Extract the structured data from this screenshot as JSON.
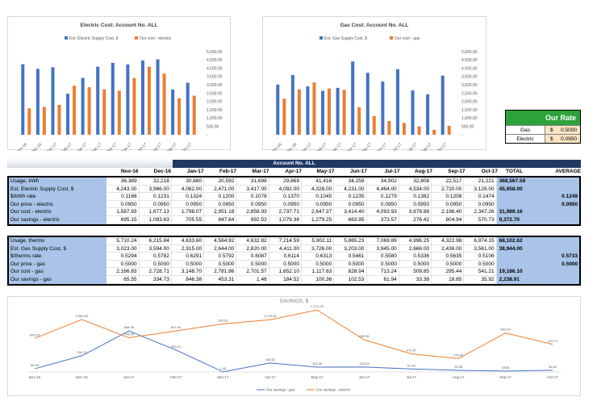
{
  "months": [
    "Nov-16",
    "Dec-16",
    "Jan-17",
    "Feb-17",
    "Mar-17",
    "Apr-17",
    "May-17",
    "Jun-17",
    "Jul-17",
    "Aug-17",
    "Sep-17",
    "Oct-17"
  ],
  "colors": {
    "blue": "#4472c4",
    "orange": "#ed7d31",
    "navy": "#1f3864",
    "green": "#2ea33c",
    "label_bg": "#a9c4e8"
  },
  "chart_data": [
    {
      "type": "bar",
      "title": "Electric Cost: Account No. ALL",
      "categories": [
        "Nov-16",
        "Dec-16",
        "Jan-17",
        "Feb-17",
        "Mar-17",
        "Apr-17",
        "May-17",
        "Jun-17",
        "Jul-17",
        "Aug-17",
        "Sep-17",
        "Oct-17"
      ],
      "series": [
        {
          "name": "Est. Electric Supply Cost, $",
          "values": [
            4243,
            3966,
            4062,
            2471,
            3417,
            4092,
            4328,
            4231,
            4464,
            4534,
            2720,
            3128
          ]
        },
        {
          "name": "Our cost - electric",
          "values": [
            1587.93,
            1677.13,
            1798.07,
            2951.18,
            2858.93,
            2737.71,
            2647.37,
            3414.4,
            4093.93,
            3678.88,
            2196.4,
            2347.26
          ]
        }
      ],
      "ylim": [
        0,
        5000
      ],
      "yticks": [
        "-",
        "500.00",
        "1,000.00",
        "1,500.00",
        "2,000.00",
        "2,500.00",
        "3,000.00",
        "3,500.00",
        "4,000.00",
        "4,500.00",
        "5,000.00"
      ],
      "legend": "top"
    },
    {
      "type": "bar",
      "title": "Gas Cost: Account No. ALL",
      "categories": [
        "Nov-16",
        "Dec-16",
        "Jan-17",
        "Feb-17",
        "Mar-17",
        "Apr-17",
        "May-17",
        "Jun-17",
        "Jul-17",
        "Aug-17",
        "Sep-17",
        "Oct-17"
      ],
      "series": [
        {
          "name": "Est. Gas Supply Cost, $",
          "values": [
            3023,
            3594,
            2915,
            2644,
            2820,
            4411,
            3726,
            3203,
            3945,
            2666,
            2436,
            3561
          ]
        },
        {
          "name": "Our cost - gas",
          "values": [
            2166.83,
            2728.71,
            3148.7,
            2781.86,
            2701.57,
            1652.1,
            1117.63,
            828.94,
            713.24,
            509.85,
            295.44,
            541.21
          ]
        }
      ],
      "ylim": [
        0,
        5000
      ],
      "yticks": [
        "-",
        "500.00",
        "1,000.00",
        "1,500.00",
        "2,000.00",
        "2,500.00",
        "3,000.00",
        "3,500.00",
        "4,000.00",
        "4,500.00",
        "5,000.00"
      ],
      "legend": "top"
    },
    {
      "type": "line",
      "title": "SAVINGS, $",
      "categories": [
        "Nov-16",
        "Dec-16",
        "Jan-17",
        "Feb-17",
        "Mar-17",
        "Apr-17",
        "May-17",
        "Jun-17",
        "Jul-17",
        "Aug-17",
        "Sep-17",
        "Oct-17"
      ],
      "series": [
        {
          "name": "Our savings - gas",
          "values": [
            65.55,
            334.73,
            846.38,
            453.31,
            1.46,
            184.52,
            100.36,
            102.53,
            61.94,
            33.38,
            18.85,
            35.92
          ],
          "labels": [
            "65.55",
            "334.73",
            "846.38",
            "453.31",
            "1.46",
            "184.52",
            "100.36",
            "102.53",
            "61.94",
            "33.38",
            "18.85",
            "35.92"
          ]
        },
        {
          "name": "Our savings - electric",
          "values": [
            695.15,
            1083.63,
            705.55,
            847.64,
            992.52,
            1079.38,
            1279.25,
            663.95,
            373.57,
            276.42,
            804.94,
            570.73
          ],
          "labels": [
            "695.15",
            "1,083.63",
            "705.55",
            "847.64",
            "992.52",
            "1,079.38",
            "1,279.25",
            "663.95",
            "373.57",
            "276.42",
            "804.94",
            "570.73"
          ]
        }
      ],
      "ylim": [
        0,
        1350
      ],
      "legend": "bottom"
    }
  ],
  "rate": {
    "title": "Our Rate",
    "rows": [
      {
        "label": "Gas",
        "currency": "$",
        "value": "0.5000"
      },
      {
        "label": "Electric",
        "currency": "$",
        "value": "0.0950"
      }
    ]
  },
  "table": {
    "header": "Account No. ALL",
    "col_total": "TOTAL",
    "col_average": "AVERAGE",
    "electric": [
      {
        "label": "Usage, kWh",
        "cells": [
          "36,389",
          "32,218",
          "30,680",
          "20,592",
          "31,698",
          "29,869",
          "41,416",
          "34,259",
          "34,902",
          "32,808",
          "22,517",
          "21,221"
        ],
        "total": "368,567.59",
        "avg": ""
      },
      {
        "label": "Est. Electric Supply Cost, $",
        "cells": [
          "4,243.00",
          "3,966.00",
          "4,062.00",
          "2,471.00",
          "3,417.00",
          "4,092.00",
          "4,328.00",
          "4,231.00",
          "4,464.00",
          "4,534.00",
          "2,720.00",
          "3,128.00"
        ],
        "total": "45,658.00",
        "avg": ""
      },
      {
        "label": "$/kWh rate",
        "cells": [
          "0.1166",
          "0.1231",
          "0.1324",
          "0.1200",
          "0.1078",
          "0.1370",
          "0.1045",
          "0.1235",
          "0.1279",
          "0.1382",
          "0.1208",
          "0.1474"
        ],
        "total": "",
        "avg": "0.1249"
      },
      {
        "label": "Our price - electric",
        "cells": [
          "0.0950",
          "0.0950",
          "0.0950",
          "0.0950",
          "0.0950",
          "0.0950",
          "0.0950",
          "0.0950",
          "0.0950",
          "0.0950",
          "0.0950",
          "0.0950"
        ],
        "total": "",
        "avg": "0.0950"
      },
      {
        "label": "Our cost - electric",
        "cells": [
          "1,587.93",
          "1,677.13",
          "1,798.07",
          "2,951.18",
          "2,858.93",
          "2,737.71",
          "2,647.37",
          "3,414.40",
          "4,093.93",
          "3,678.88",
          "2,196.40",
          "2,347.26"
        ],
        "total": "31,989.16",
        "avg": ""
      },
      {
        "label": "Our savings - electric",
        "cells": [
          "695.15",
          "1,083.63",
          "705.55",
          "847.64",
          "992.52",
          "1,079.38",
          "1,279.25",
          "663.95",
          "373.57",
          "276.42",
          "804.94",
          "570.73"
        ],
        "total": "9,372.70",
        "avg": ""
      }
    ],
    "gas": [
      {
        "label": "Usage, therms",
        "cells": [
          "5,710.24",
          "6,215.84",
          "4,633.60",
          "4,564.92",
          "4,632.82",
          "7,214.59",
          "5,902.11",
          "5,865.23",
          "7,069.89",
          "4,996.25",
          "4,322.98",
          "6,974.15"
        ],
        "total": "68,102.62",
        "avg": ""
      },
      {
        "label": "Est. Gas Supply Cost, $",
        "cells": [
          "3,023.00",
          "3,594.00",
          "2,915.00",
          "2,644.00",
          "2,820.00",
          "4,411.00",
          "3,726.00",
          "3,203.00",
          "3,945.00",
          "2,666.00",
          "2,436.00",
          "3,561.00"
        ],
        "total": "38,944.00",
        "avg": ""
      },
      {
        "label": "$/therms rate",
        "cells": [
          "0.5294",
          "0.5782",
          "0.6291",
          "0.5792",
          "0.6087",
          "0.6114",
          "0.6313",
          "0.5461",
          "0.5580",
          "0.5336",
          "0.5635",
          "0.5106"
        ],
        "total": "",
        "avg": "0.5733"
      },
      {
        "label": "Our price - gas",
        "cells": [
          "0.5000",
          "0.5000",
          "0.5000",
          "0.5000",
          "0.5000",
          "0.5000",
          "0.5000",
          "0.5000",
          "0.5000",
          "0.5000",
          "0.5000",
          "0.5000"
        ],
        "total": "",
        "avg": "0.5000"
      },
      {
        "label": "Our cost - gas",
        "cells": [
          "2,166.83",
          "2,728.71",
          "3,148.70",
          "2,781.86",
          "2,701.57",
          "1,652.10",
          "1,117.63",
          "828.94",
          "713.24",
          "509.85",
          "295.44",
          "541.21"
        ],
        "total": "19,186.10",
        "avg": ""
      },
      {
        "label": "Our savings - gas",
        "cells": [
          "65.55",
          "334.73",
          "846.38",
          "453.31",
          "1.46",
          "184.52",
          "100.36",
          "102.53",
          "61.94",
          "33.38",
          "18.85",
          "35.92"
        ],
        "total": "2,238.91",
        "avg": ""
      }
    ]
  }
}
